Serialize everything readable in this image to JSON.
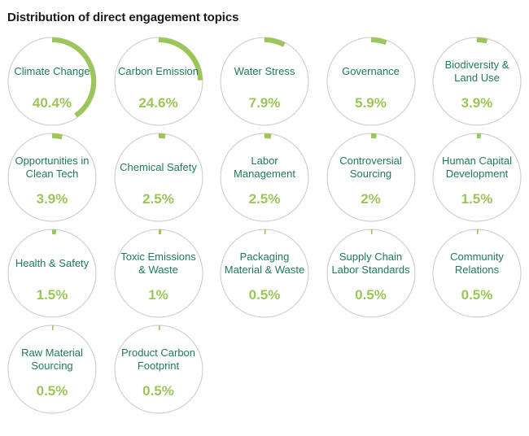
{
  "title": "Distribution of direct engagement topics",
  "colors": {
    "accent": "#9cc65a",
    "label": "#1f7a5c",
    "track": "#cfd3cf"
  },
  "chart_data": {
    "type": "pie",
    "title": "Distribution of direct engagement topics",
    "unit": "%",
    "categories": [
      "Climate Change",
      "Carbon Emission",
      "Water Stress",
      "Governance",
      "Biodiversity & Land Use",
      "Opportunities in Clean Tech",
      "Chemical Safety",
      "Labor Management",
      "Controversial Sourcing",
      "Human Capital Development",
      "Health & Safety",
      "Toxic Emissions & Waste",
      "Packaging Material & Waste",
      "Supply Chain Labor Standards",
      "Community Relations",
      "Raw Material Sourcing",
      "Product Carbon Footprint"
    ],
    "values": [
      40.4,
      24.6,
      7.9,
      5.9,
      3.9,
      3.9,
      2.5,
      2.5,
      2,
      1.5,
      1.5,
      1,
      0.5,
      0.5,
      0.5,
      0.5,
      0.5
    ],
    "value_labels": [
      "40.4%",
      "24.6%",
      "7.9%",
      "5.9%",
      "3.9%",
      "3.9%",
      "2.5%",
      "2.5%",
      "2%",
      "1.5%",
      "1.5%",
      "1%",
      "0.5%",
      "0.5%",
      "0.5%",
      "0.5%",
      "0.5%"
    ]
  }
}
